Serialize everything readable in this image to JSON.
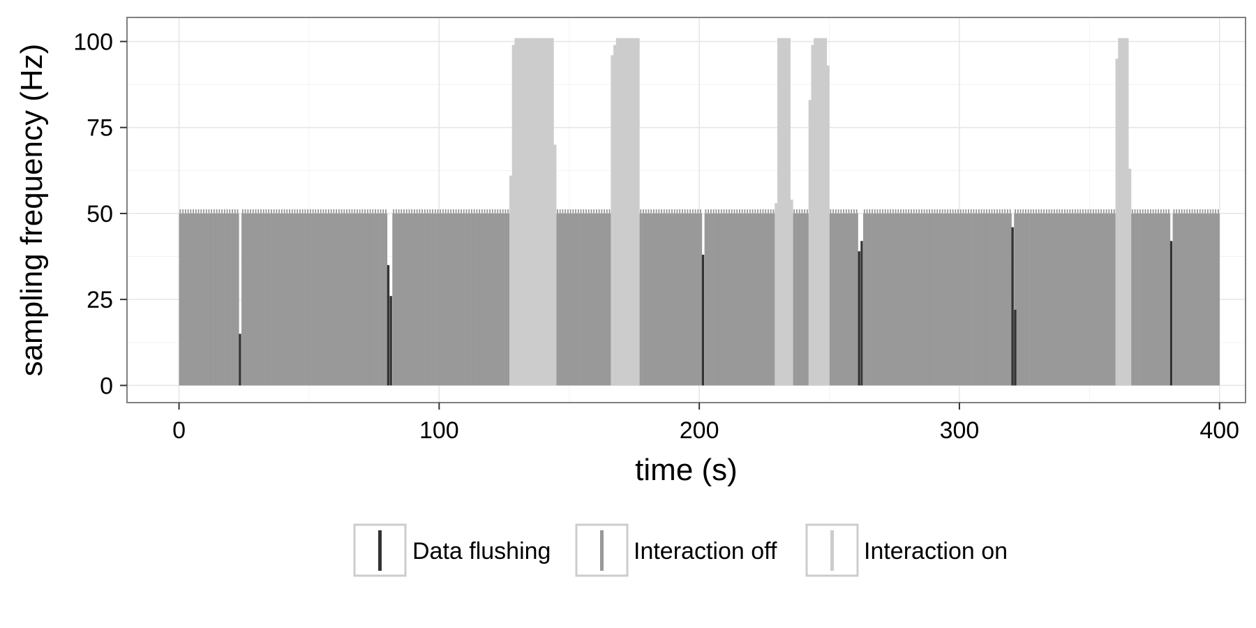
{
  "chart_data": {
    "type": "bar",
    "xlabel": "time (s)",
    "ylabel": "sampling frequency (Hz)",
    "xlim": [
      -20,
      410
    ],
    "ylim": [
      -5,
      107
    ],
    "x_ticks": [
      0,
      100,
      200,
      300,
      400
    ],
    "x_tick_labels": [
      "0",
      "100",
      "200",
      "300",
      "400"
    ],
    "y_ticks": [
      0,
      25,
      50,
      75,
      100
    ],
    "y_tick_labels": [
      "0",
      "25",
      "50",
      "75",
      "100"
    ],
    "grid": true,
    "legend_position": "bottom",
    "bar_width_s": 1,
    "colors": {
      "Data flushing": "#333333",
      "Interaction off": "#999999",
      "Interaction on": "#cccccc"
    },
    "series": [
      {
        "name": "Interaction off",
        "segments": [
          {
            "start": 0,
            "end": 23,
            "hz": 50
          },
          {
            "start": 24,
            "end": 80,
            "hz": 50
          },
          {
            "start": 82,
            "end": 127,
            "hz": 50
          },
          {
            "start": 145,
            "end": 166,
            "hz": 50
          },
          {
            "start": 177,
            "end": 201,
            "hz": 50
          },
          {
            "start": 202,
            "end": 229,
            "hz": 50
          },
          {
            "start": 236,
            "end": 242,
            "hz": 50
          },
          {
            "start": 250,
            "end": 261,
            "hz": 50
          },
          {
            "start": 263,
            "end": 320,
            "hz": 50
          },
          {
            "start": 321,
            "end": 360,
            "hz": 50
          },
          {
            "start": 366,
            "end": 381,
            "hz": 50
          },
          {
            "start": 382,
            "end": 400,
            "hz": 50
          }
        ]
      },
      {
        "name": "Interaction on",
        "bars": [
          [
            127,
            61
          ],
          [
            128,
            99
          ],
          [
            129,
            101
          ],
          [
            130,
            101
          ],
          [
            131,
            101
          ],
          [
            132,
            101
          ],
          [
            133,
            101
          ],
          [
            134,
            101
          ],
          [
            135,
            101
          ],
          [
            136,
            101
          ],
          [
            137,
            101
          ],
          [
            138,
            101
          ],
          [
            139,
            101
          ],
          [
            140,
            101
          ],
          [
            141,
            101
          ],
          [
            142,
            101
          ],
          [
            143,
            101
          ],
          [
            144,
            70
          ],
          [
            166,
            96
          ],
          [
            167,
            99
          ],
          [
            168,
            101
          ],
          [
            169,
            101
          ],
          [
            170,
            101
          ],
          [
            171,
            101
          ],
          [
            172,
            101
          ],
          [
            173,
            101
          ],
          [
            174,
            101
          ],
          [
            175,
            101
          ],
          [
            176,
            101
          ],
          [
            229,
            53
          ],
          [
            230,
            101
          ],
          [
            231,
            101
          ],
          [
            232,
            101
          ],
          [
            233,
            101
          ],
          [
            234,
            101
          ],
          [
            235,
            54
          ],
          [
            242,
            83
          ],
          [
            243,
            99
          ],
          [
            244,
            101
          ],
          [
            245,
            101
          ],
          [
            246,
            101
          ],
          [
            247,
            101
          ],
          [
            248,
            101
          ],
          [
            249,
            93
          ],
          [
            360,
            95
          ],
          [
            361,
            101
          ],
          [
            362,
            101
          ],
          [
            363,
            101
          ],
          [
            364,
            101
          ],
          [
            365,
            63
          ]
        ]
      },
      {
        "name": "Data flushing",
        "bars": [
          [
            23,
            15
          ],
          [
            80,
            35
          ],
          [
            81,
            26
          ],
          [
            201,
            38
          ],
          [
            261,
            39
          ],
          [
            262,
            42
          ],
          [
            320,
            46
          ],
          [
            321,
            22
          ],
          [
            381,
            42
          ]
        ]
      }
    ],
    "legend": [
      {
        "label": "Data flushing",
        "color": "#333333"
      },
      {
        "label": "Interaction off",
        "color": "#999999"
      },
      {
        "label": "Interaction on",
        "color": "#cccccc"
      }
    ]
  }
}
